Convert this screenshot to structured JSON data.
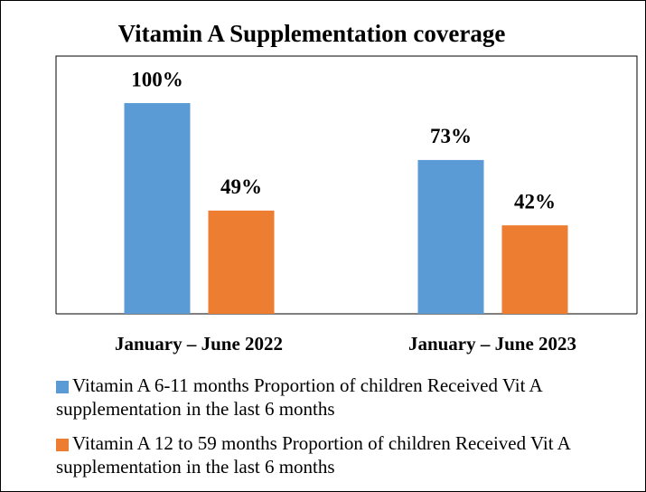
{
  "chart_data": {
    "type": "bar",
    "title": "Vitamin A Supplementation coverage",
    "categories": [
      "January – June 2022",
      "January – June 2023"
    ],
    "series": [
      {
        "name": "Vitamin A 6-11 months Proportion of children Received Vit A supplementation in the last 6 months",
        "color": "#5b9bd5",
        "values": [
          100,
          73
        ],
        "value_labels": [
          "100%",
          "73%"
        ]
      },
      {
        "name": "Vitamin A 12 to 59 months Proportion of children Received Vit A supplementation in the last 6 months",
        "color": "#ed7d31",
        "values": [
          49,
          42
        ],
        "value_labels": [
          "49%",
          "42%"
        ]
      }
    ]
  }
}
